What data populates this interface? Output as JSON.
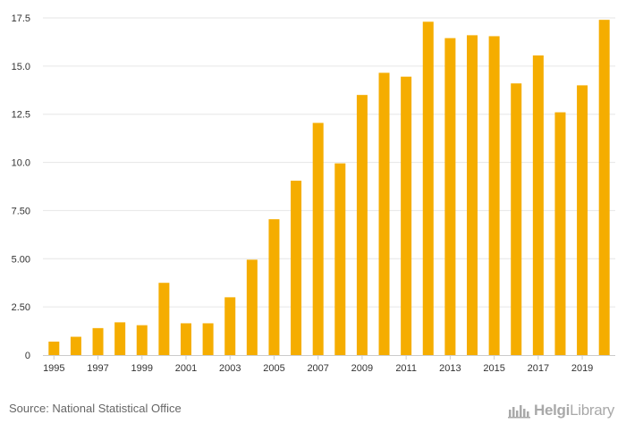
{
  "chart_data": {
    "type": "bar",
    "title": "",
    "xlabel": "",
    "ylabel": "",
    "ylim": [
      0,
      17.5
    ],
    "yticks": [
      0,
      2.5,
      5,
      7.5,
      10,
      12.5,
      15,
      17.5
    ],
    "ytick_labels": [
      "0",
      "2.50",
      "5.00",
      "7.50",
      "10.0",
      "12.5",
      "15.0",
      "17.5"
    ],
    "categories": [
      "1995",
      "1996",
      "1997",
      "1998",
      "1999",
      "2000",
      "2001",
      "2002",
      "2003",
      "2004",
      "2005",
      "2006",
      "2007",
      "2008",
      "2009",
      "2010",
      "2011",
      "2012",
      "2013",
      "2014",
      "2015",
      "2016",
      "2017",
      "2018",
      "2019",
      "2020"
    ],
    "xtick_labels": [
      "1995",
      "1997",
      "1999",
      "2001",
      "2003",
      "2005",
      "2007",
      "2009",
      "2011",
      "2013",
      "2015",
      "2017",
      "2019"
    ],
    "values": [
      0.7,
      0.95,
      1.4,
      1.7,
      1.55,
      3.75,
      1.65,
      1.65,
      3.0,
      4.95,
      7.05,
      9.05,
      12.05,
      9.95,
      13.5,
      14.65,
      14.45,
      17.3,
      16.45,
      16.6,
      16.55,
      14.1,
      15.55,
      12.6,
      14.0,
      17.4
    ],
    "colors": {
      "bar": "#f5ad00",
      "grid": "#e6e6e6",
      "axis": "#cccccc",
      "text": "#333333"
    }
  },
  "footer": {
    "source": "Source: National Statistical Office",
    "logo_prefix": "Helgi",
    "logo_suffix": "Library",
    "logo_icon": "helgi-library-icon"
  }
}
